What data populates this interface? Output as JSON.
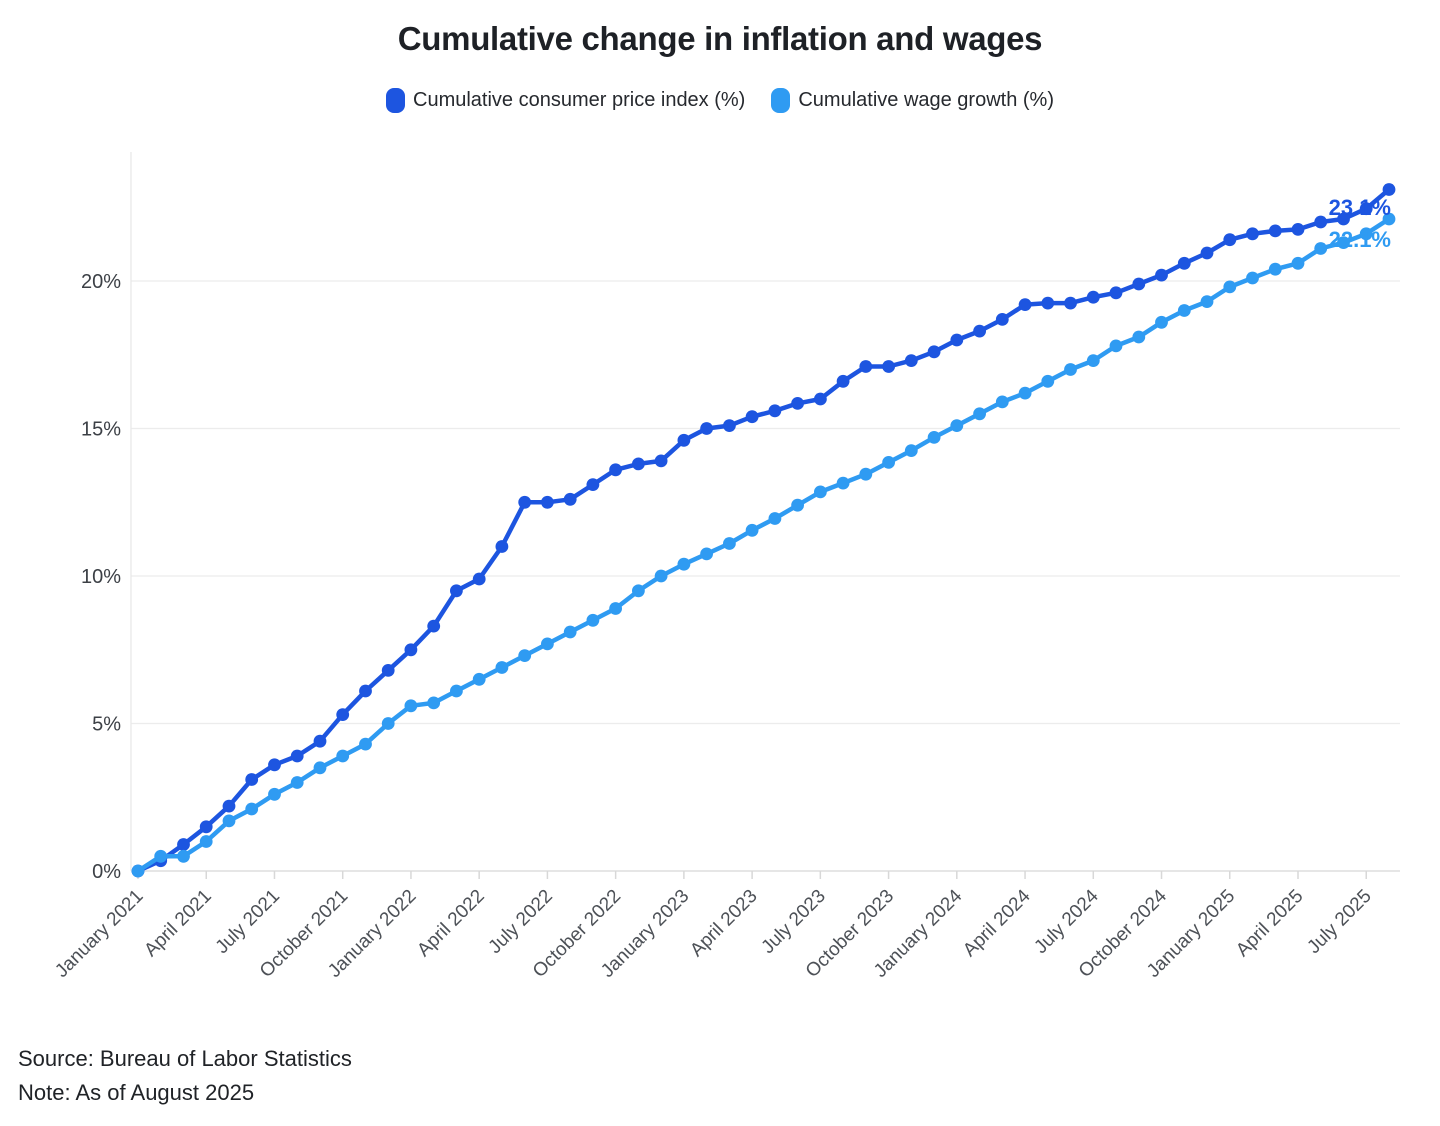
{
  "title": "Cumulative change in inflation and wages",
  "legend": [
    {
      "label": "Cumulative consumer price index (%)",
      "color": "#1d55e0"
    },
    {
      "label": "Cumulative wage growth (%)",
      "color": "#2f9bf2"
    }
  ],
  "footer": {
    "source": "Source: Bureau of Labor Statistics",
    "note": "Note: As of August 2025"
  },
  "chart_data": {
    "type": "line",
    "title": "Cumulative change in inflation and wages",
    "xlabel": "",
    "ylabel": "",
    "grid": "horizontal",
    "legend_position": "top",
    "ylim": [
      0,
      24.3
    ],
    "y_tick_values": [
      0,
      5,
      10,
      15,
      20
    ],
    "y_tick_labels": [
      "0%",
      "5%",
      "10%",
      "15%",
      "20%"
    ],
    "x_tick_every_months": 3,
    "x_tick_labels": [
      "January 2021",
      "April 2021",
      "July 2021",
      "October 2021",
      "January 2022",
      "April 2022",
      "July 2022",
      "October 2022",
      "January 2023",
      "April 2023",
      "July 2023",
      "October 2023",
      "January 2024",
      "April 2024",
      "July 2024",
      "October 2024",
      "January 2025",
      "April 2025",
      "July 2025"
    ],
    "months": [
      "2021-01",
      "2021-02",
      "2021-03",
      "2021-04",
      "2021-05",
      "2021-06",
      "2021-07",
      "2021-08",
      "2021-09",
      "2021-10",
      "2021-11",
      "2021-12",
      "2022-01",
      "2022-02",
      "2022-03",
      "2022-04",
      "2022-05",
      "2022-06",
      "2022-07",
      "2022-08",
      "2022-09",
      "2022-10",
      "2022-11",
      "2022-12",
      "2023-01",
      "2023-02",
      "2023-03",
      "2023-04",
      "2023-05",
      "2023-06",
      "2023-07",
      "2023-08",
      "2023-09",
      "2023-10",
      "2023-11",
      "2023-12",
      "2024-01",
      "2024-02",
      "2024-03",
      "2024-04",
      "2024-05",
      "2024-06",
      "2024-07",
      "2024-08",
      "2024-09",
      "2024-10",
      "2024-11",
      "2024-12",
      "2025-01",
      "2025-02",
      "2025-03",
      "2025-04",
      "2025-05",
      "2025-06",
      "2025-07",
      "2025-08"
    ],
    "series": [
      {
        "name": "Cumulative consumer price index (%)",
        "color": "#1d55e0",
        "end_label": "23.1%",
        "values": [
          0,
          0.35,
          0.9,
          1.5,
          2.2,
          3.1,
          3.6,
          3.9,
          4.4,
          5.3,
          6.1,
          6.8,
          7.5,
          8.3,
          9.5,
          9.9,
          11.0,
          12.5,
          12.5,
          12.6,
          13.1,
          13.6,
          13.8,
          13.9,
          14.6,
          15.0,
          15.1,
          15.4,
          15.6,
          15.85,
          16.0,
          16.6,
          17.1,
          17.1,
          17.3,
          17.6,
          18.0,
          18.3,
          18.7,
          19.2,
          19.25,
          19.25,
          19.45,
          19.6,
          19.9,
          20.2,
          20.6,
          20.95,
          21.4,
          21.6,
          21.7,
          21.75,
          22.0,
          22.1,
          22.45,
          23.1
        ]
      },
      {
        "name": "Cumulative wage growth (%)",
        "color": "#2f9bf2",
        "end_label": "22.1%",
        "values": [
          0,
          0.5,
          0.5,
          1.0,
          1.7,
          2.1,
          2.6,
          3.0,
          3.5,
          3.9,
          4.3,
          5.0,
          5.6,
          5.7,
          6.1,
          6.5,
          6.9,
          7.3,
          7.7,
          8.1,
          8.5,
          8.9,
          9.5,
          10.0,
          10.4,
          10.75,
          11.1,
          11.55,
          11.95,
          12.4,
          12.85,
          13.15,
          13.45,
          13.85,
          14.25,
          14.7,
          15.1,
          15.5,
          15.9,
          16.2,
          16.6,
          17.0,
          17.3,
          17.8,
          18.1,
          18.6,
          19.0,
          19.3,
          19.8,
          20.1,
          20.4,
          20.6,
          21.1,
          21.3,
          21.6,
          22.1
        ]
      }
    ]
  }
}
